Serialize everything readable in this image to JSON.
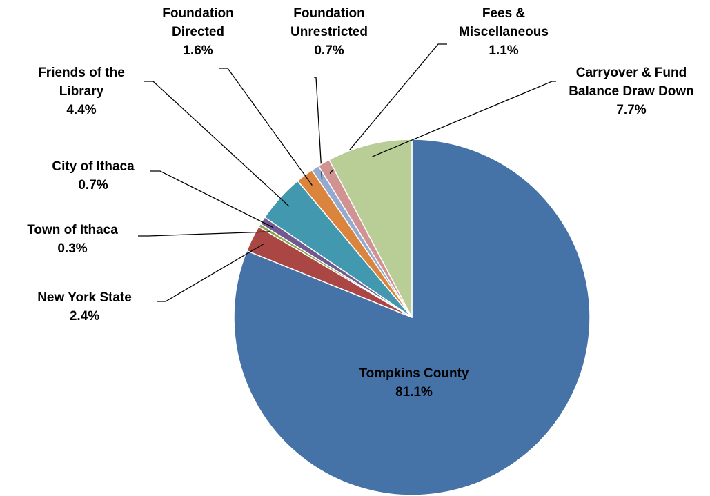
{
  "chart_data": {
    "type": "pie",
    "categories": [
      "Tompkins County",
      "New York State",
      "Town of Ithaca",
      "City of Ithaca",
      "Friends of the Library",
      "Foundation Directed",
      "Foundation Unrestricted",
      "Fees & Miscellaneous",
      "Carryover & Fund Balance Draw Down"
    ],
    "values": [
      81.1,
      2.4,
      0.3,
      0.7,
      4.4,
      1.6,
      0.7,
      1.1,
      7.7
    ],
    "value_labels": [
      "81.1%",
      "2.4%",
      "0.3%",
      "0.7%",
      "4.4%",
      "1.6%",
      "0.7%",
      "1.1%",
      "7.7%"
    ],
    "colors": [
      "#4572a7",
      "#aa4643",
      "#89a54e",
      "#71588f",
      "#4198af",
      "#db843d",
      "#93a9cf",
      "#d19392",
      "#b9cd96"
    ]
  }
}
